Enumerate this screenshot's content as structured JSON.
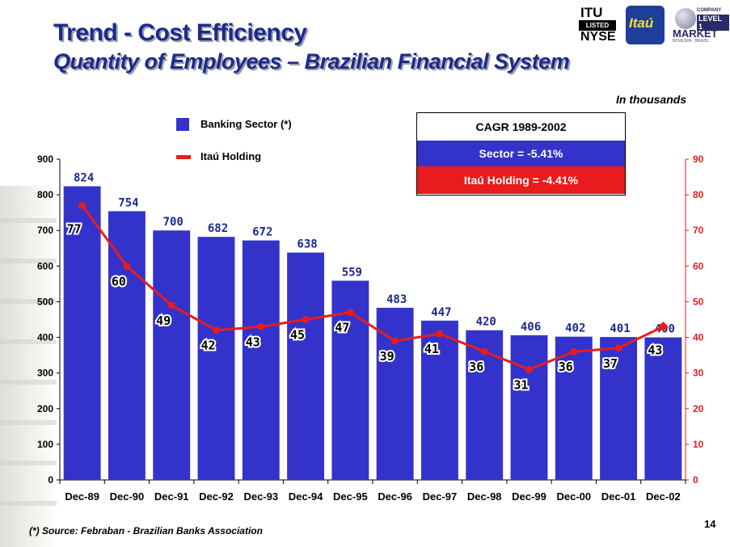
{
  "header": {
    "title": "Trend - Cost Efficiency",
    "subtitle": "Quantity of Employees – Brazilian Financial System"
  },
  "logos": {
    "itu_line1": "ITU",
    "itu_line2": "LISTED",
    "itu_line3": "NYSE",
    "itau": "Itaú",
    "market_line1": "COMPANY",
    "market_line2": "LEVEL 1",
    "market_line3": "MARKET",
    "market_line4": "BOVESPA · BRAZIL"
  },
  "unit_note": "In thousands",
  "legend": {
    "bar_label": "Banking Sector (*)",
    "line_label": "Itaú Holding"
  },
  "cagr": {
    "title": "CAGR 1989-2002",
    "sector": "Sector = -5.41%",
    "itau": "Itaú Holding = -4.41%"
  },
  "footnote": "(*) Source: Febraban - Brazilian Banks Association",
  "page_number": "14",
  "colors": {
    "bar": "#3333cc",
    "line": "#e81c1c",
    "title": "#1b2a8c"
  },
  "chart_data": {
    "type": "bar",
    "categories": [
      "Dec-89",
      "Dec-90",
      "Dec-91",
      "Dec-92",
      "Dec-93",
      "Dec-94",
      "Dec-95",
      "Dec-96",
      "Dec-97",
      "Dec-98",
      "Dec-99",
      "Dec-00",
      "Dec-01",
      "Dec-02"
    ],
    "series": [
      {
        "name": "Banking Sector (*)",
        "type": "bar",
        "axis": "left",
        "values": [
          824,
          754,
          700,
          682,
          672,
          638,
          559,
          483,
          447,
          420,
          406,
          402,
          401,
          400
        ]
      },
      {
        "name": "Itaú Holding",
        "type": "line",
        "axis": "right",
        "values": [
          77,
          60,
          49,
          42,
          43,
          45,
          47,
          39,
          41,
          36,
          31,
          36,
          37,
          43
        ]
      }
    ],
    "y_left": {
      "min": 0,
      "max": 900,
      "ticks": [
        0,
        100,
        200,
        300,
        400,
        500,
        600,
        700,
        800,
        900
      ]
    },
    "y_right": {
      "min": 0,
      "max": 90,
      "ticks": [
        0,
        10,
        20,
        30,
        40,
        50,
        60,
        70,
        80,
        90
      ]
    },
    "grid": false
  }
}
